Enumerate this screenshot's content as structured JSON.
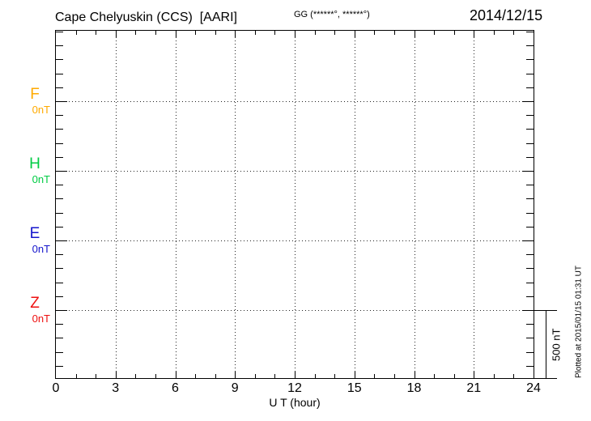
{
  "header": {
    "title": "Cape Chelyuskin (CCS)  [AARI]",
    "coords": "GG (******°, ******°)",
    "date": "2014/12/15"
  },
  "components": [
    {
      "label": "F",
      "unit": "0nT",
      "color": "#FFAA00"
    },
    {
      "label": "H",
      "unit": "0nT",
      "color": "#00CC44"
    },
    {
      "label": "E",
      "unit": "0nT",
      "color": "#1515CC"
    },
    {
      "label": "Z",
      "unit": "0nT",
      "color": "#EE1111"
    }
  ],
  "xaxis": {
    "label": "U T (hour)",
    "ticks": [
      "0",
      "3",
      "6",
      "9",
      "12",
      "15",
      "18",
      "21",
      "24"
    ],
    "tick_hours": [
      0,
      3,
      6,
      9,
      12,
      15,
      18,
      21,
      24
    ]
  },
  "scale_bar": {
    "label": "500 nT",
    "nanotesla": 500
  },
  "footer_note": "Plotted at 2015/01/15 01:31 UT",
  "chart_data": {
    "type": "line",
    "title": "Cape Chelyuskin (CCS) [AARI] magnetogram",
    "date": "2014/12/15",
    "xlabel": "U T (hour)",
    "x_range": [
      0,
      24
    ],
    "x_ticks": [
      0,
      3,
      6,
      9,
      12,
      15,
      18,
      21,
      24
    ],
    "grid": "dotted vertical lines every 3 hours; dotted horizontal baseline at each component zero level",
    "y_minor_division_nT": 100,
    "scale_bar_nT": 500,
    "series": [
      {
        "name": "F",
        "baseline": "0nT",
        "color": "#FFAA00",
        "values": []
      },
      {
        "name": "H",
        "baseline": "0nT",
        "color": "#00CC44",
        "values": []
      },
      {
        "name": "E",
        "baseline": "0nT",
        "color": "#1515CC",
        "values": []
      },
      {
        "name": "Z",
        "baseline": "0nT",
        "color": "#EE1111",
        "values": []
      }
    ],
    "note": "No data traces are drawn; plot area is empty with baselines only"
  }
}
